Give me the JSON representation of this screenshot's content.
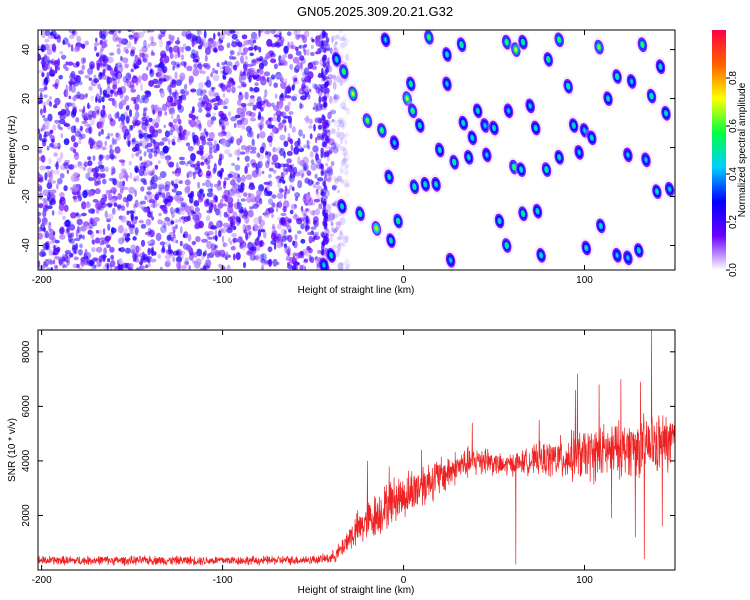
{
  "figure": {
    "title": "GN05.2025.309.20.21.G32"
  },
  "chart_data": [
    {
      "type": "heatmap",
      "xlabel": "Height of straight line (km)",
      "ylabel": "Frequency (Hz)",
      "xlim": [
        -202,
        150
      ],
      "ylim": [
        -50,
        48
      ],
      "x_ticks": [
        -200,
        -100,
        0,
        100
      ],
      "y_ticks": [
        -40,
        -20,
        0,
        20,
        40
      ],
      "colorbar": {
        "label": "Normalized spectral amplitude",
        "range": [
          0.0,
          1.0
        ],
        "ticks": [
          0.0,
          0.2,
          0.4,
          0.6,
          0.8
        ],
        "colormap": [
          "#ffffff",
          "#6a00ff",
          "#0000ff",
          "#00d0ff",
          "#00ff40",
          "#ffff00",
          "#ff6000",
          "#ff0040"
        ]
      },
      "noise_region": {
        "x_range": [
          -202,
          -35
        ],
        "typical_amplitude": 0.2
      },
      "peaks": [
        {
          "x": -37,
          "y": 36,
          "v": 0.5
        },
        {
          "x": -33,
          "y": 31,
          "v": 0.6
        },
        {
          "x": -28,
          "y": 22,
          "v": 0.7
        },
        {
          "x": -20,
          "y": 11,
          "v": 0.65
        },
        {
          "x": -12,
          "y": 7,
          "v": 0.6
        },
        {
          "x": -10,
          "y": 44,
          "v": 0.45
        },
        {
          "x": 4,
          "y": 26,
          "v": 0.55
        },
        {
          "x": 2,
          "y": 20,
          "v": 0.7
        },
        {
          "x": 5,
          "y": 15,
          "v": 0.6
        },
        {
          "x": 9,
          "y": 9,
          "v": 0.5
        },
        {
          "x": 14,
          "y": 45,
          "v": 0.6
        },
        {
          "x": 24,
          "y": 38,
          "v": 0.5
        },
        {
          "x": 24,
          "y": 26,
          "v": 0.45
        },
        {
          "x": 32,
          "y": 42,
          "v": 0.55
        },
        {
          "x": 33,
          "y": 10,
          "v": 0.5
        },
        {
          "x": 38,
          "y": 4,
          "v": 0.5
        },
        {
          "x": 41,
          "y": 15,
          "v": 0.5
        },
        {
          "x": 45,
          "y": 9,
          "v": 0.45
        },
        {
          "x": 50,
          "y": 8,
          "v": 0.5
        },
        {
          "x": 57,
          "y": 43,
          "v": 0.6
        },
        {
          "x": 58,
          "y": 15,
          "v": 0.45
        },
        {
          "x": 62,
          "y": 40,
          "v": 0.7
        },
        {
          "x": 66,
          "y": 43,
          "v": 0.55
        },
        {
          "x": 70,
          "y": 17,
          "v": 0.45
        },
        {
          "x": 73,
          "y": 8,
          "v": 0.5
        },
        {
          "x": 80,
          "y": 36,
          "v": 0.55
        },
        {
          "x": 86,
          "y": 44,
          "v": 0.6
        },
        {
          "x": 91,
          "y": 25,
          "v": 0.55
        },
        {
          "x": 94,
          "y": 9,
          "v": 0.5
        },
        {
          "x": 100,
          "y": 7,
          "v": 0.45
        },
        {
          "x": 108,
          "y": 41,
          "v": 0.65
        },
        {
          "x": 113,
          "y": 20,
          "v": 0.5
        },
        {
          "x": 118,
          "y": 29,
          "v": 0.55
        },
        {
          "x": 126,
          "y": 27,
          "v": 0.45
        },
        {
          "x": 132,
          "y": 42,
          "v": 0.6
        },
        {
          "x": 137,
          "y": 21,
          "v": 0.55
        },
        {
          "x": 142,
          "y": 33,
          "v": 0.5
        },
        {
          "x": 145,
          "y": 14,
          "v": 0.5
        },
        {
          "x": -5,
          "y": 2,
          "v": 0.45
        },
        {
          "x": 20,
          "y": -1,
          "v": 0.5
        },
        {
          "x": 28,
          "y": -6,
          "v": 0.55
        },
        {
          "x": 36,
          "y": -4,
          "v": 0.5
        },
        {
          "x": 46,
          "y": -3,
          "v": 0.45
        },
        {
          "x": 61,
          "y": -8,
          "v": 0.6
        },
        {
          "x": 65,
          "y": -9,
          "v": 0.5
        },
        {
          "x": 79,
          "y": -9,
          "v": 0.55
        },
        {
          "x": 86,
          "y": -4,
          "v": 0.5
        },
        {
          "x": 97,
          "y": -2,
          "v": 0.45
        },
        {
          "x": 104,
          "y": 4,
          "v": 0.5
        },
        {
          "x": 124,
          "y": -3,
          "v": 0.45
        },
        {
          "x": 140,
          "y": -18,
          "v": 0.5
        },
        {
          "x": 147,
          "y": -17,
          "v": 0.45
        },
        {
          "x": -8,
          "y": -12,
          "v": 0.5
        },
        {
          "x": 6,
          "y": -16,
          "v": 0.55
        },
        {
          "x": 12,
          "y": -15,
          "v": 0.5
        },
        {
          "x": 18,
          "y": -15,
          "v": 0.5
        },
        {
          "x": 53,
          "y": -30,
          "v": 0.5
        },
        {
          "x": 66,
          "y": -27,
          "v": 0.55
        },
        {
          "x": 74,
          "y": -26,
          "v": 0.5
        },
        {
          "x": -34,
          "y": -24,
          "v": 0.5
        },
        {
          "x": -24,
          "y": -27,
          "v": 0.55
        },
        {
          "x": -15,
          "y": -33,
          "v": 0.75
        },
        {
          "x": -3,
          "y": -30,
          "v": 0.55
        },
        {
          "x": -7,
          "y": -38,
          "v": 0.5
        },
        {
          "x": -40,
          "y": -44,
          "v": 0.5
        },
        {
          "x": 26,
          "y": -46,
          "v": 0.45
        },
        {
          "x": 57,
          "y": -40,
          "v": 0.55
        },
        {
          "x": 76,
          "y": -44,
          "v": 0.5
        },
        {
          "x": 101,
          "y": -41,
          "v": 0.5
        },
        {
          "x": 109,
          "y": -32,
          "v": 0.5
        },
        {
          "x": 118,
          "y": -44,
          "v": 0.45
        },
        {
          "x": 124,
          "y": -45,
          "v": 0.45
        },
        {
          "x": 130,
          "y": -42,
          "v": 0.5
        },
        {
          "x": -44,
          "y": -48,
          "v": 0.45
        },
        {
          "x": 134,
          "y": -5,
          "v": 0.45
        }
      ]
    },
    {
      "type": "line",
      "xlabel": "Height of straight line (km)",
      "ylabel": "SNR (10 * v/v)",
      "xlim": [
        -202,
        150
      ],
      "ylim": [
        0,
        8800
      ],
      "x_ticks": [
        -200,
        -100,
        0,
        100
      ],
      "y_ticks": [
        2000,
        4000,
        6000,
        8000
      ],
      "series": [
        {
          "color": "#ee2222",
          "x": [
            -202,
            -190,
            -180,
            -170,
            -160,
            -150,
            -140,
            -130,
            -120,
            -110,
            -100,
            -90,
            -80,
            -70,
            -60,
            -50,
            -45,
            -40,
            -35,
            -30,
            -25,
            -20,
            -15,
            -10,
            -5,
            0,
            5,
            10,
            15,
            20,
            25,
            30,
            35,
            40,
            45,
            50,
            55,
            60,
            65,
            70,
            75,
            80,
            85,
            90,
            95,
            100,
            105,
            110,
            115,
            120,
            125,
            130,
            135,
            140,
            145,
            150
          ],
          "values": [
            350,
            350,
            340,
            360,
            350,
            340,
            360,
            350,
            350,
            340,
            360,
            350,
            340,
            360,
            360,
            380,
            400,
            450,
            700,
            1200,
            1500,
            1800,
            2000,
            2300,
            2600,
            2700,
            2900,
            3100,
            3300,
            3400,
            3600,
            3800,
            3900,
            4000,
            4100,
            3900,
            3800,
            3900,
            3950,
            4000,
            4050,
            4050,
            4100,
            4100,
            4200,
            4200,
            4250,
            4300,
            4400,
            4400,
            4500,
            4500,
            4600,
            4600,
            4650,
            4700
          ],
          "noise_spread": [
            200,
            200,
            200,
            200,
            200,
            200,
            200,
            200,
            200,
            200,
            200,
            200,
            200,
            200,
            200,
            200,
            200,
            250,
            400,
            600,
            800,
            900,
            1000,
            1000,
            1000,
            1000,
            1000,
            1000,
            900,
            900,
            800,
            700,
            700,
            700,
            700,
            500,
            500,
            500,
            500,
            600,
            700,
            800,
            900,
            1000,
            1100,
            1100,
            1200,
            1200,
            1200,
            1200,
            1200,
            1300,
            1300,
            1300,
            1300,
            1300
          ],
          "spikes": [
            {
              "x": -20,
              "y": 4000
            },
            {
              "x": -8,
              "y": 3800
            },
            {
              "x": 10,
              "y": 4400
            },
            {
              "x": 38,
              "y": 5400
            },
            {
              "x": 62,
              "y": 200
            },
            {
              "x": 75,
              "y": 5500
            },
            {
              "x": 95,
              "y": 6600
            },
            {
              "x": 96,
              "y": 7200
            },
            {
              "x": 108,
              "y": 6800
            },
            {
              "x": 120,
              "y": 7000
            },
            {
              "x": 131,
              "y": 6900
            },
            {
              "x": 137,
              "y": 8800
            },
            {
              "x": 128,
              "y": 1200
            },
            {
              "x": 133,
              "y": 400
            },
            {
              "x": 143,
              "y": 1600
            },
            {
              "x": 115,
              "y": 1900
            }
          ]
        }
      ]
    }
  ]
}
